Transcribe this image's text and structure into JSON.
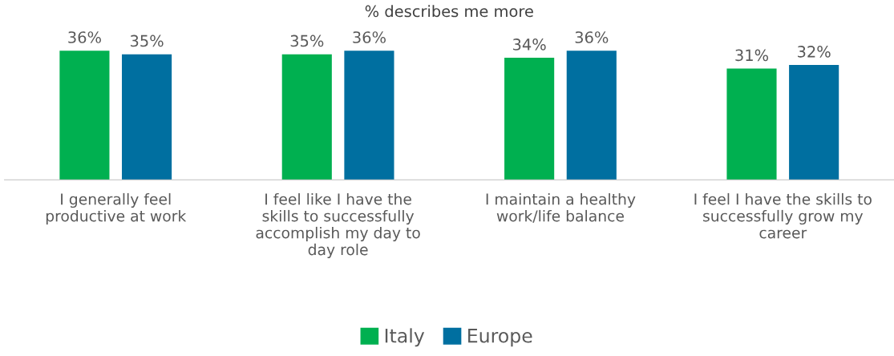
{
  "chart_data": {
    "type": "bar",
    "title": "% describes me more",
    "categories": [
      "I generally feel\nproductive at work",
      "I feel like I have the\nskills to successfully\naccomplish my day to\nday role",
      "I maintain a healthy\nwork/life balance",
      "I feel I have the skills to\nsuccessfully grow my\ncareer"
    ],
    "series": [
      {
        "name": "Italy",
        "color": "#00b050",
        "values": [
          36,
          35,
          34,
          31
        ],
        "value_labels": [
          "36%",
          "35%",
          "34%",
          "31%"
        ]
      },
      {
        "name": "Europe",
        "color": "#006fa0",
        "values": [
          35,
          36,
          36,
          32
        ],
        "value_labels": [
          "35%",
          "36%",
          "36%",
          "32%"
        ]
      }
    ],
    "tick_labels": "x",
    "grid": false,
    "legend": "bottom"
  }
}
